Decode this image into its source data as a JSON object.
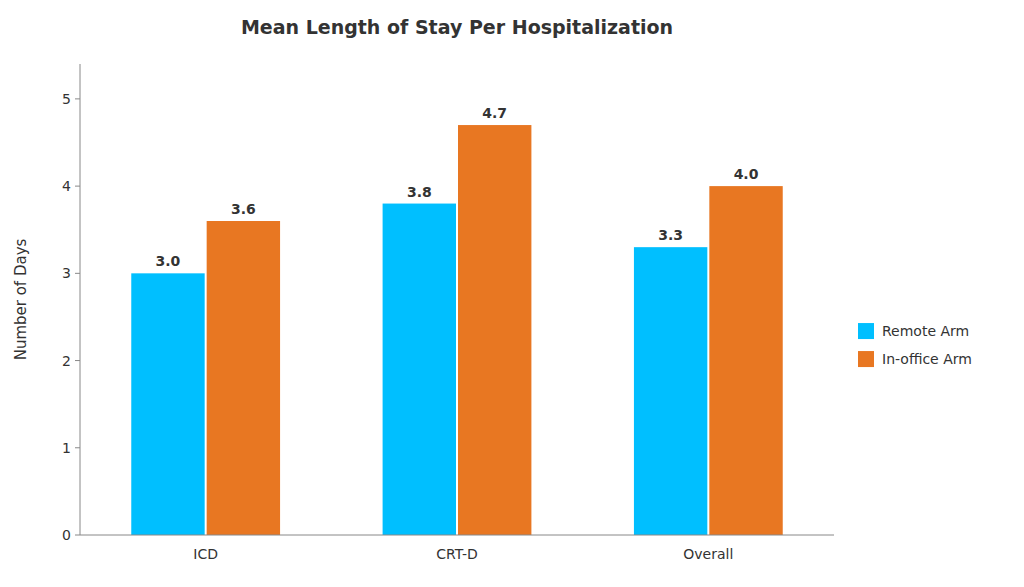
{
  "chart_data": {
    "type": "bar",
    "title": "Mean Length of Stay Per Hospitalization",
    "ylabel": "Number of Days",
    "categories": [
      "ICD",
      "CRT-D",
      "Overall"
    ],
    "series": [
      {
        "name": "Remote Arm",
        "color": "#00BFFF",
        "values": [
          3.0,
          3.8,
          3.3
        ],
        "value_labels": [
          "3.0",
          "3.8",
          "3.3"
        ]
      },
      {
        "name": "In-office Arm",
        "color": "#E87722",
        "values": [
          3.6,
          4.7,
          4.0
        ],
        "value_labels": [
          "3.6",
          "4.7",
          "4.0"
        ]
      }
    ],
    "ylim": [
      0,
      5.4
    ],
    "yticks": [
      0,
      1,
      2,
      3,
      4,
      5
    ],
    "data_labels": true,
    "grid": false,
    "legend": "right"
  }
}
